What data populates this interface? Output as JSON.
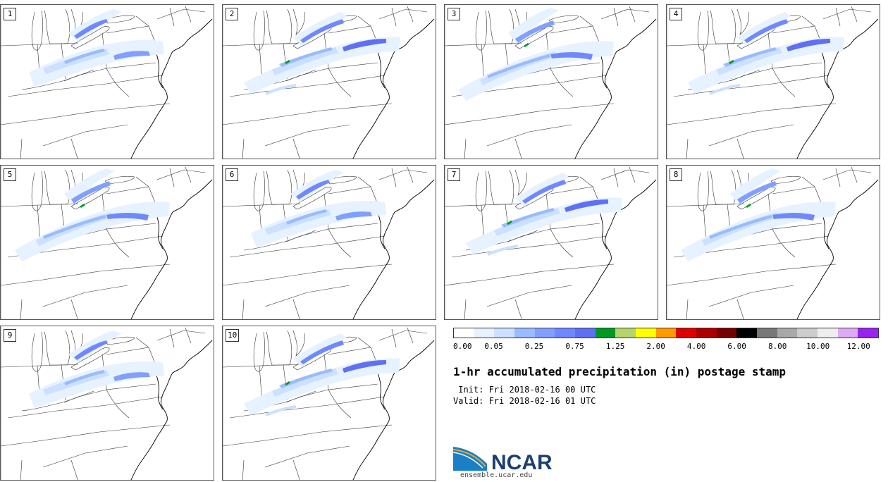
{
  "panels": [
    {
      "label": "1"
    },
    {
      "label": "2"
    },
    {
      "label": "3"
    },
    {
      "label": "4"
    },
    {
      "label": "5"
    },
    {
      "label": "6"
    },
    {
      "label": "7"
    },
    {
      "label": "8"
    },
    {
      "label": "9"
    },
    {
      "label": "10"
    }
  ],
  "colorbar": {
    "colors": [
      "#ffffff",
      "#e6f2ff",
      "#cce0ff",
      "#99bbff",
      "#809fff",
      "#7088ff",
      "#5f70f5",
      "#009922",
      "#b5d46a",
      "#ffff00",
      "#ff9900",
      "#dd0000",
      "#aa0000",
      "#770000",
      "#000000",
      "#777777",
      "#a8a8a8",
      "#cccccc",
      "#eeeeee",
      "#ddaaf5",
      "#9922ee"
    ],
    "ticks": [
      "0.00",
      "0.05",
      "0.25",
      "0.75",
      "1.25",
      "2.00",
      "4.00",
      "6.00",
      "8.00",
      "10.00",
      "12.00"
    ]
  },
  "title": "1-hr accumulated precipitation (in) postage stamp",
  "init": " Init: Fri 2018-02-16 00 UTC",
  "valid": "Valid: Fri 2018-02-16 01 UTC",
  "logo_text": "NCAR",
  "site": "ensemble.ucar.edu"
}
